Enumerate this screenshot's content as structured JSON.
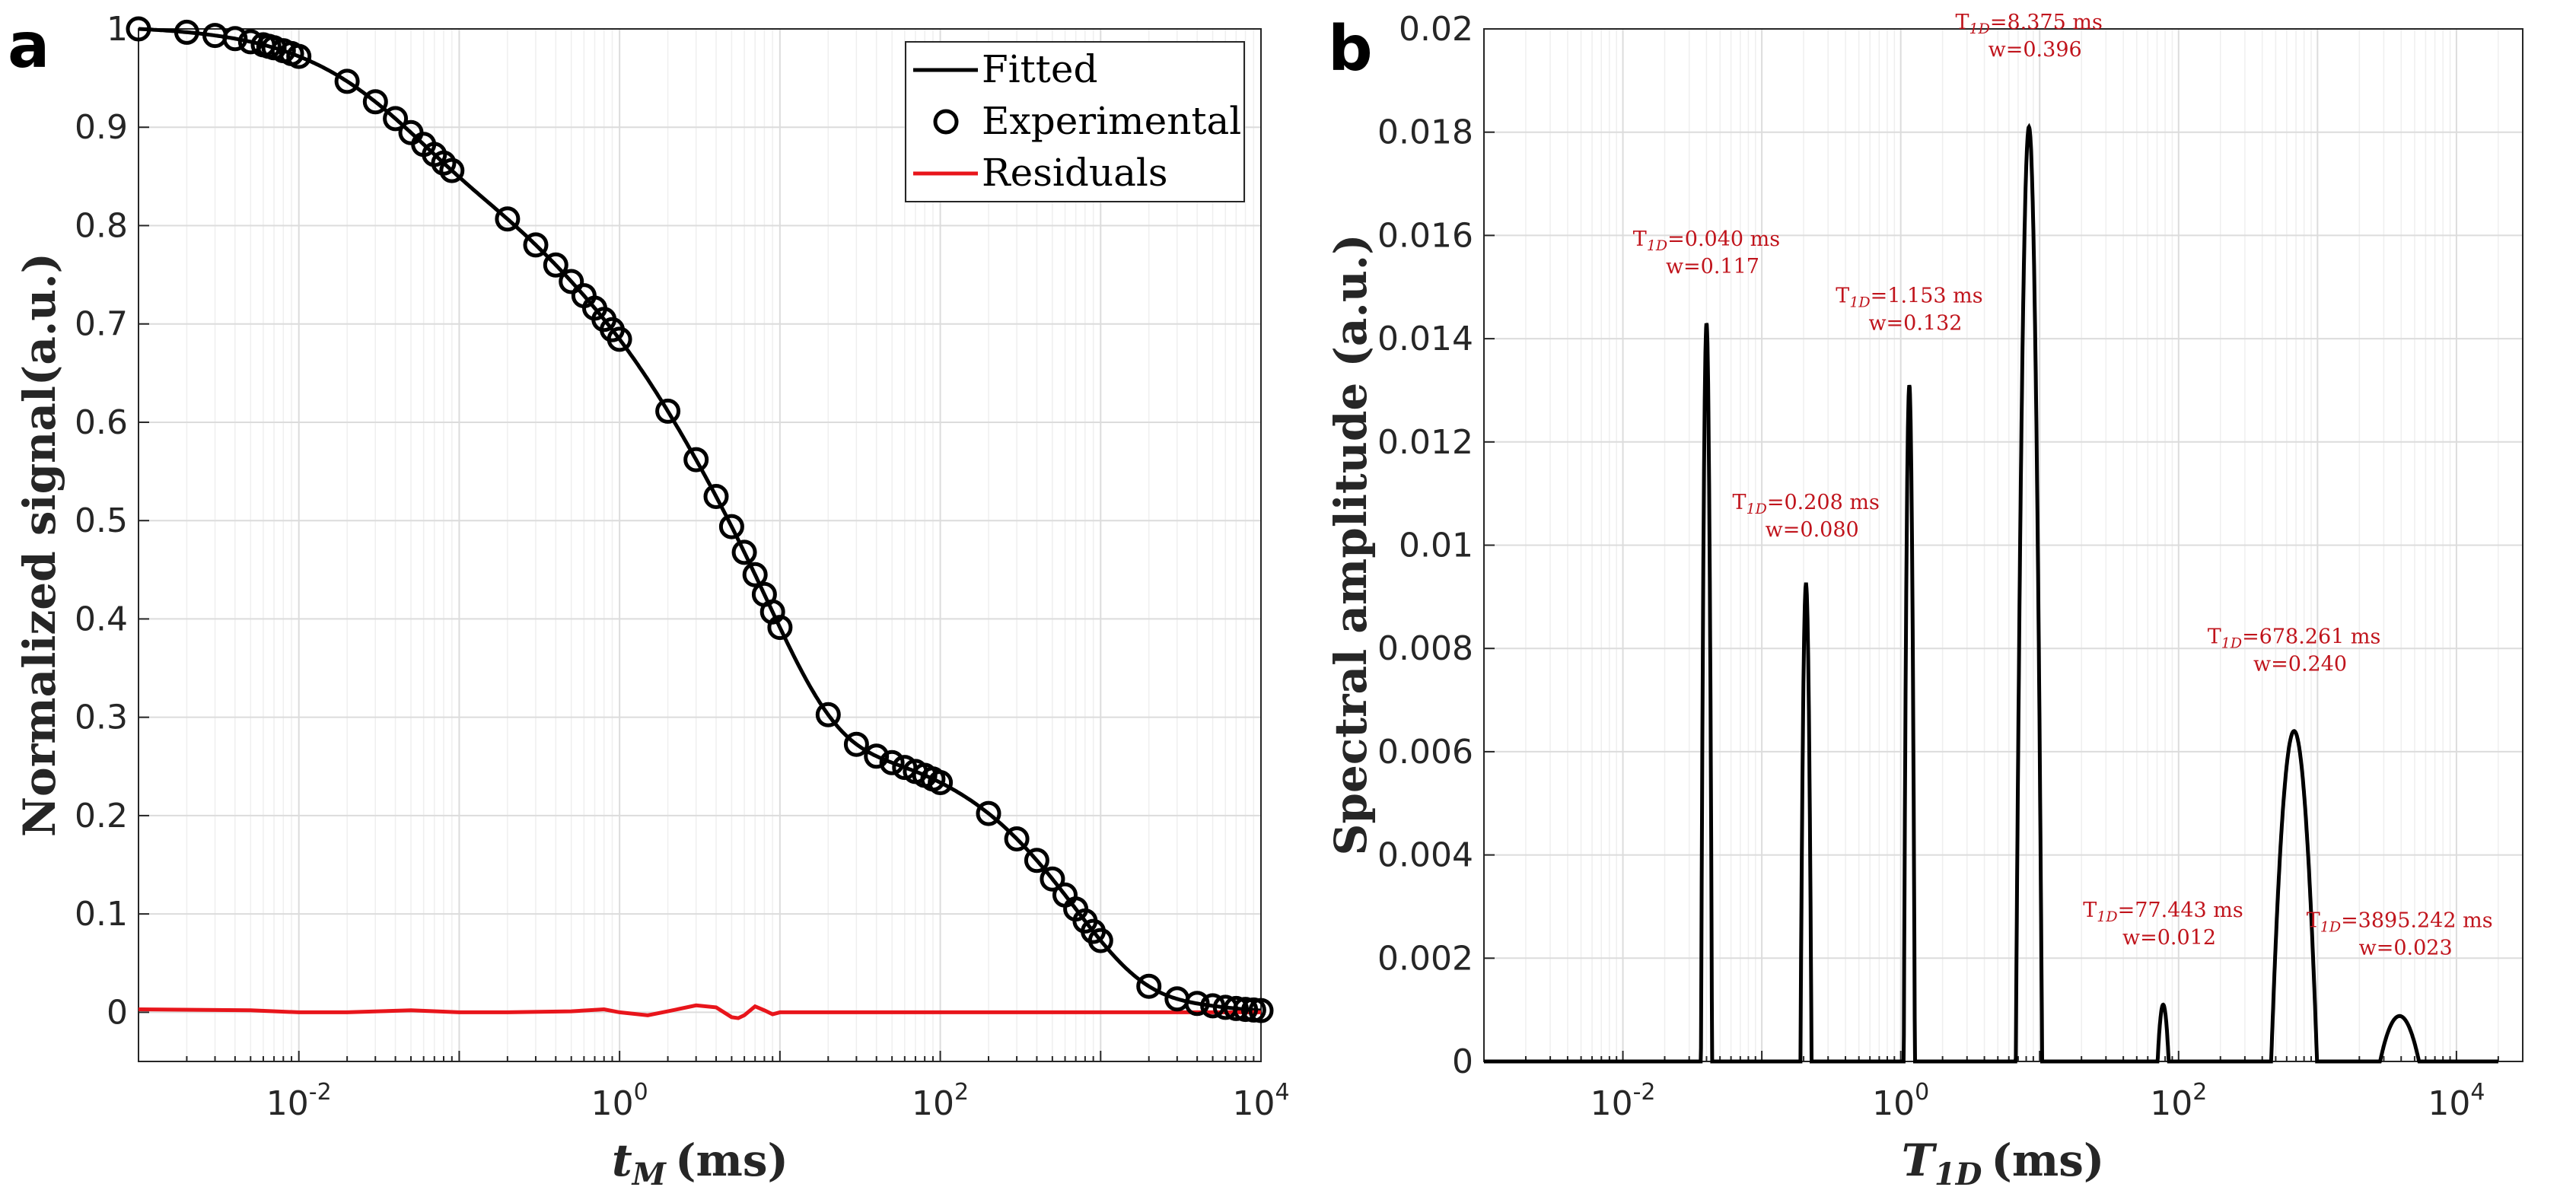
{
  "panels": {
    "a": "a",
    "b": "b"
  },
  "chart_data": [
    {
      "id": "a",
      "type": "scatter",
      "xscale": "log",
      "xlim": [
        0.001,
        10000
      ],
      "ylim": [
        -0.05,
        1.0
      ],
      "xlabel": "t_M (ms)",
      "xlabel_main": "t",
      "xlabel_sub": "M",
      "xlabel_unit": "(ms)",
      "ylabel": "Normalized signal(a.u.)",
      "xticks": [
        0.01,
        1,
        100,
        10000
      ],
      "xtick_labels": [
        {
          "base": "10",
          "exp": "-2"
        },
        {
          "base": "10",
          "exp": "0"
        },
        {
          "base": "10",
          "exp": "2"
        },
        {
          "base": "10",
          "exp": "4"
        }
      ],
      "yticks": [
        0,
        0.1,
        0.2,
        0.3,
        0.4,
        0.5,
        0.6,
        0.7,
        0.8,
        0.9,
        1
      ],
      "ytick_labels": [
        "0",
        "0.1",
        "0.2",
        "0.3",
        "0.4",
        "0.5",
        "0.6",
        "0.7",
        "0.8",
        "0.9",
        "1"
      ],
      "grid": true,
      "legend": {
        "position": "top-right",
        "entries": [
          "Fitted",
          "Experimental",
          "Residuals"
        ]
      },
      "components": [
        {
          "T": 0.04,
          "w": 0.117
        },
        {
          "T": 0.208,
          "w": 0.08
        },
        {
          "T": 1.153,
          "w": 0.132
        },
        {
          "T": 8.375,
          "w": 0.396
        },
        {
          "T": 77.443,
          "w": 0.012
        },
        {
          "T": 678.261,
          "w": 0.24
        },
        {
          "T": 3895.242,
          "w": 0.023
        }
      ],
      "experimental_t": [
        0.001,
        0.002,
        0.003,
        0.004,
        0.005,
        0.006,
        0.0065,
        0.007,
        0.008,
        0.009,
        0.01,
        0.02,
        0.03,
        0.04,
        0.05,
        0.06,
        0.07,
        0.08,
        0.09,
        0.2,
        0.3,
        0.4,
        0.5,
        0.6,
        0.7,
        0.8,
        0.9,
        1.0,
        2,
        3,
        4,
        5,
        6,
        7,
        8,
        9,
        10,
        20,
        30,
        40,
        50,
        60,
        70,
        80,
        90,
        100,
        200,
        300,
        400,
        500,
        600,
        700,
        800,
        900,
        1000,
        2000,
        3000,
        4000,
        5000,
        6000,
        7000,
        8000,
        9000,
        10000
      ],
      "residuals": {
        "t": [
          0.001,
          0.005,
          0.01,
          0.02,
          0.05,
          0.1,
          0.2,
          0.5,
          0.8,
          1,
          1.5,
          2,
          3,
          4,
          5,
          5.5,
          6,
          7,
          8,
          9,
          10,
          15,
          20,
          50,
          100,
          1000,
          10000
        ],
        "r": [
          0.003,
          0.002,
          0.0,
          0.0,
          0.002,
          0.0,
          0.0,
          0.001,
          0.003,
          0.0,
          -0.003,
          0.001,
          0.007,
          0.005,
          -0.005,
          -0.006,
          -0.003,
          0.006,
          0.002,
          -0.002,
          0.0,
          0.0,
          0.0,
          0.0,
          0.0,
          0.0,
          0.0
        ]
      }
    },
    {
      "id": "b",
      "type": "line",
      "xscale": "log",
      "xlim": [
        0.001,
        30000
      ],
      "ylim": [
        0,
        0.02
      ],
      "xlabel": "T_1D (ms)",
      "xlabel_main": "T",
      "xlabel_sub": "1D",
      "xlabel_unit": "(ms)",
      "ylabel": "Spectral amplitude (a.u.)",
      "xticks": [
        0.01,
        1,
        100,
        10000
      ],
      "xtick_labels": [
        {
          "base": "10",
          "exp": "-2"
        },
        {
          "base": "10",
          "exp": "0"
        },
        {
          "base": "10",
          "exp": "2"
        },
        {
          "base": "10",
          "exp": "4"
        }
      ],
      "yticks": [
        0,
        0.002,
        0.004,
        0.006,
        0.008,
        0.01,
        0.012,
        0.014,
        0.016,
        0.018,
        0.02
      ],
      "ytick_labels": [
        "0",
        "0.002",
        "0.004",
        "0.006",
        "0.008",
        "0.01",
        "0.012",
        "0.014",
        "0.016",
        "0.018",
        "0.02"
      ],
      "grid": true,
      "peaks": [
        {
          "T": 0.04,
          "amp": 0.0143,
          "half_width_decades": 0.04
        },
        {
          "T": 0.208,
          "amp": 0.00925,
          "half_width_decades": 0.04
        },
        {
          "T": 1.153,
          "amp": 0.0131,
          "half_width_decades": 0.04
        },
        {
          "T": 8.375,
          "amp": 0.0181,
          "half_width_decades": 0.095
        },
        {
          "T": 77.443,
          "amp": 0.0011,
          "half_width_decades": 0.04
        },
        {
          "T": 678.261,
          "amp": 0.0064,
          "half_width_decades": 0.165
        },
        {
          "T": 3895.242,
          "amp": 0.00088,
          "half_width_decades": 0.14
        }
      ],
      "annotations": [
        {
          "line1_main": "T",
          "line1_sub": "1D",
          "line1_rest": "=0.040 ms",
          "line2": "w=0.117",
          "T": 0.04,
          "y_data": 0.0153
        },
        {
          "line1_main": "T",
          "line1_sub": "1D",
          "line1_rest": "=0.208 ms",
          "line2": "w=0.080",
          "T": 0.208,
          "y_data": 0.0102
        },
        {
          "line1_main": "T",
          "line1_sub": "1D",
          "line1_rest": "=1.153 ms",
          "line2": "w=0.132",
          "T": 1.153,
          "y_data": 0.0142
        },
        {
          "line1_main": "T",
          "line1_sub": "1D",
          "line1_rest": "=8.375 ms",
          "line2": "w=0.396",
          "T": 8.375,
          "y_data": 0.0195
        },
        {
          "line1_main": "T",
          "line1_sub": "1D",
          "line1_rest": "=77.443 ms",
          "line2": "w=0.012",
          "T": 77.443,
          "y_data": 0.0023
        },
        {
          "line1_main": "T",
          "line1_sub": "1D",
          "line1_rest": "=678.261 ms",
          "line2": "w=0.240",
          "T": 678.261,
          "y_data": 0.0076
        },
        {
          "line1_main": "T",
          "line1_sub": "1D",
          "line1_rest": "=3895.242 ms",
          "line2": "w=0.023",
          "T": 3895.242,
          "y_data": 0.0021
        }
      ]
    }
  ]
}
